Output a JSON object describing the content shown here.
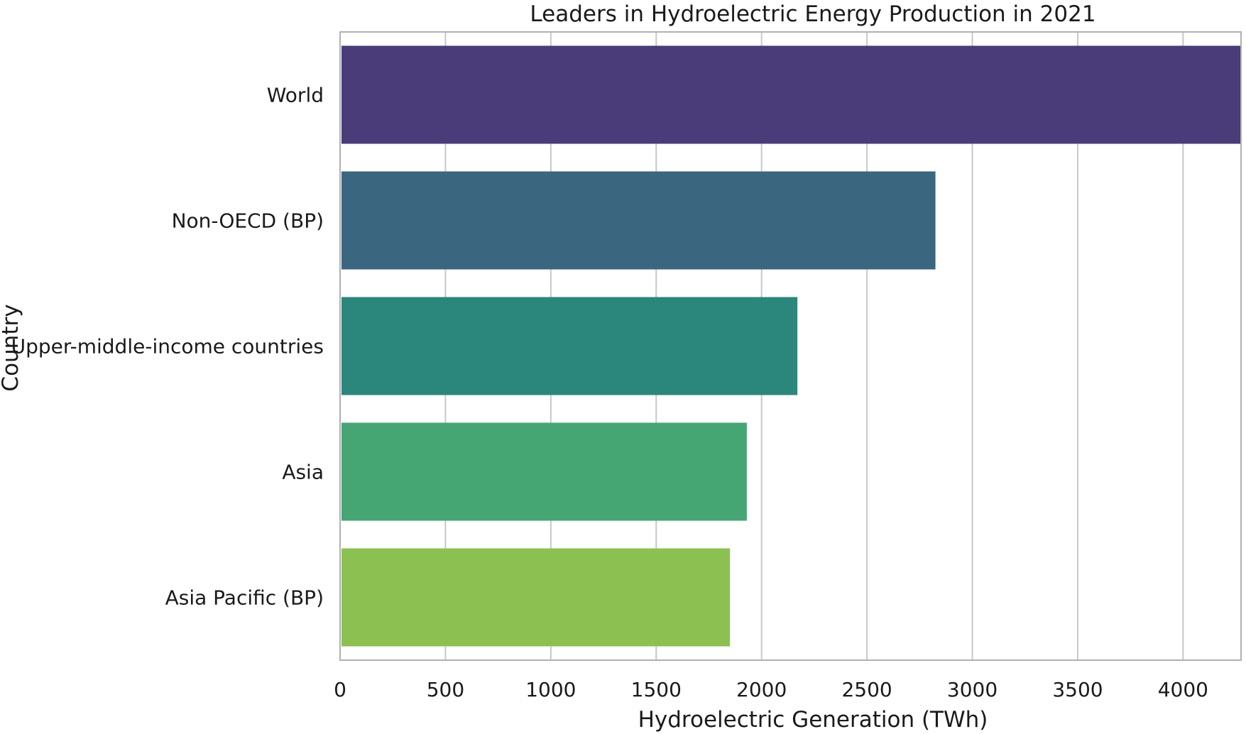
{
  "chart_data": {
    "type": "bar",
    "orientation": "horizontal",
    "title": "Leaders in Hydroelectric Energy Production in 2021",
    "xlabel": "Hydroelectric Generation (TWh)",
    "ylabel": "Country",
    "categories": [
      "World",
      "Non-OECD (BP)",
      "Upper-middle-income countries",
      "Asia",
      "Asia Pacific (BP)"
    ],
    "values": [
      4275,
      2825,
      2170,
      1930,
      1850
    ],
    "colors": [
      "#4a3c78",
      "#3b6680",
      "#2b867c",
      "#45a673",
      "#8cc152"
    ],
    "xlim": [
      0,
      4275
    ],
    "xticks": [
      0,
      500,
      1000,
      1500,
      2000,
      2500,
      3000,
      3500,
      4000
    ],
    "xtick_labels": [
      "0",
      "500",
      "1000",
      "1500",
      "2000",
      "2500",
      "3000",
      "3500",
      "4000"
    ],
    "grid": "vertical"
  }
}
